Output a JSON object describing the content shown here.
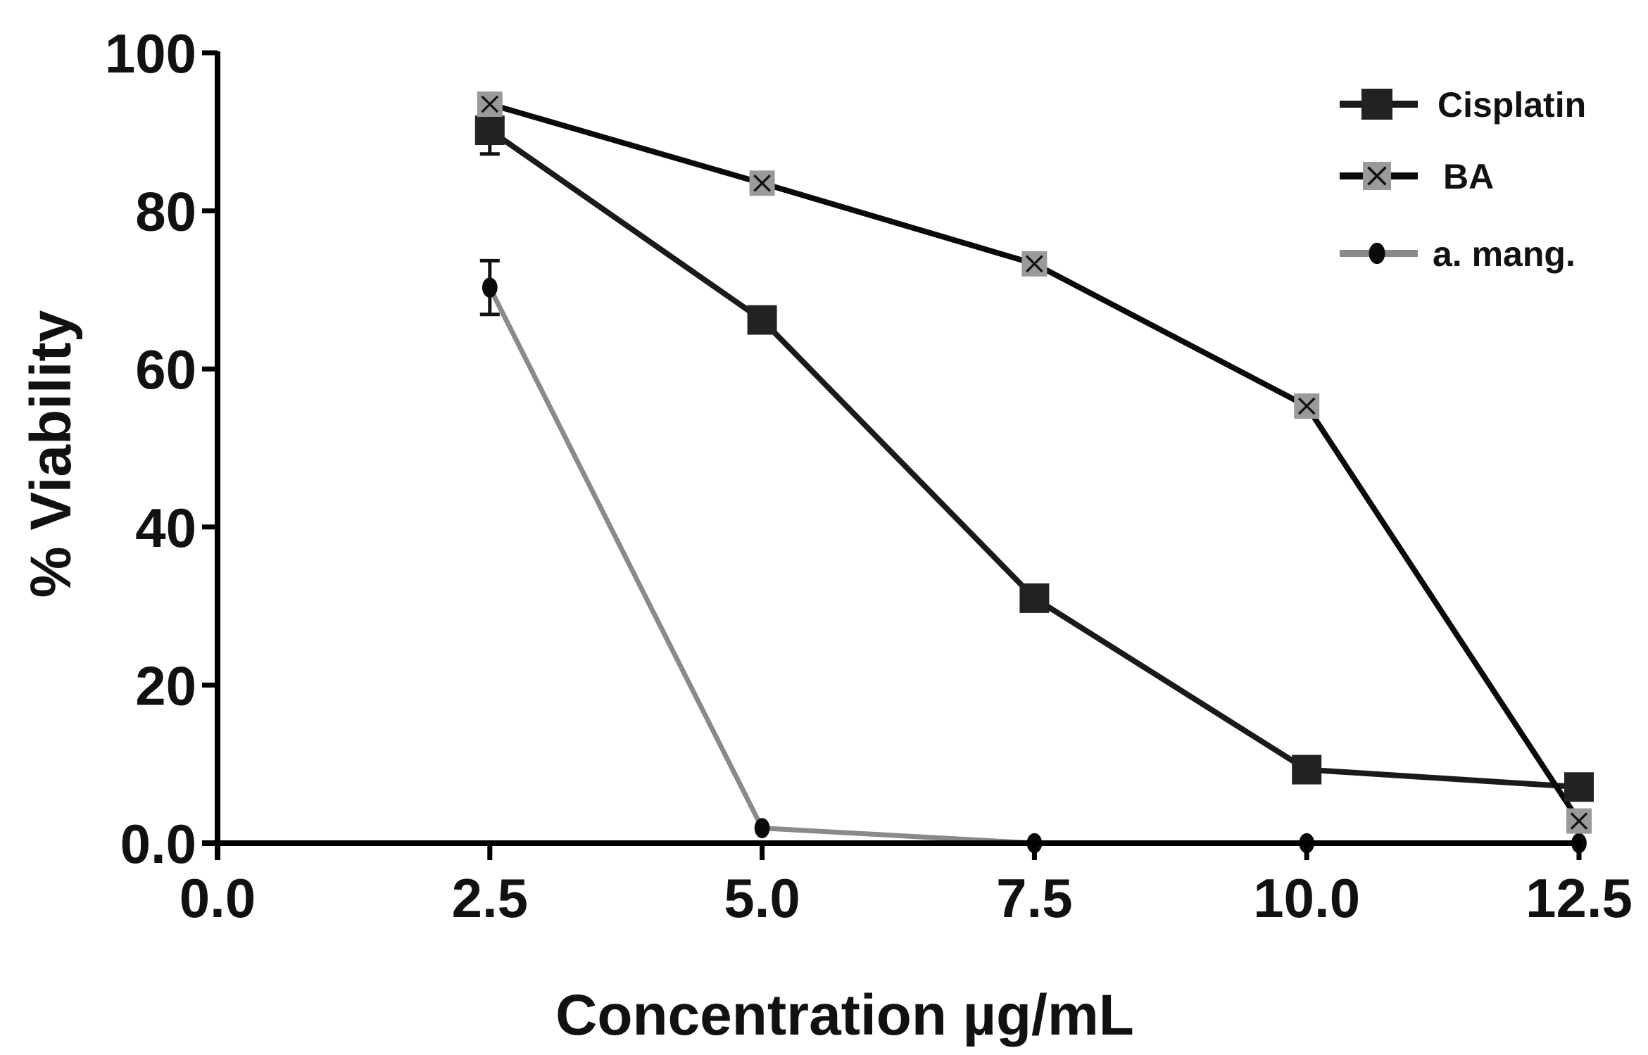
{
  "chart_data": {
    "type": "line",
    "title": "",
    "xlabel": "Concentration µg/mL",
    "ylabel": "% Viability",
    "xlim": [
      0,
      12.5
    ],
    "ylim": [
      0,
      100
    ],
    "grid": false,
    "legend_position": "top-right",
    "x_ticks": [
      0.0,
      2.5,
      5.0,
      7.5,
      10.0,
      12.5
    ],
    "x_tick_labels": [
      "0.0",
      "2.5",
      "5.0",
      "7.5",
      "10.0",
      "12.5"
    ],
    "y_ticks": [
      0,
      20,
      40,
      60,
      80,
      100
    ],
    "y_tick_labels": [
      "0.0",
      "20",
      "40",
      "60",
      "80",
      "100"
    ],
    "x": [
      2.5,
      5.0,
      7.5,
      10.0,
      12.5
    ],
    "series": [
      {
        "name": "Cisplatin",
        "marker": "square",
        "line_color": "#1a1a1a",
        "marker_fill": "#222222",
        "values": [
          90.2,
          66.2,
          31.0,
          9.3,
          7.1
        ],
        "error": [
          3.0,
          null,
          null,
          null,
          null
        ]
      },
      {
        "name": "BA",
        "marker": "square-x",
        "line_color": "#0a0a0a",
        "marker_fill": "#9a9a9a",
        "values": [
          93.5,
          83.5,
          73.3,
          55.3,
          2.8
        ],
        "error": [
          null,
          null,
          null,
          null,
          null
        ]
      },
      {
        "name": "a. mang.",
        "marker": "circle",
        "line_color": "#8a8a8a",
        "marker_fill": "#0a0a0a",
        "values": [
          70.3,
          1.9,
          0.0,
          0.0,
          0.0
        ],
        "error": [
          3.4,
          null,
          null,
          null,
          null
        ]
      }
    ]
  }
}
